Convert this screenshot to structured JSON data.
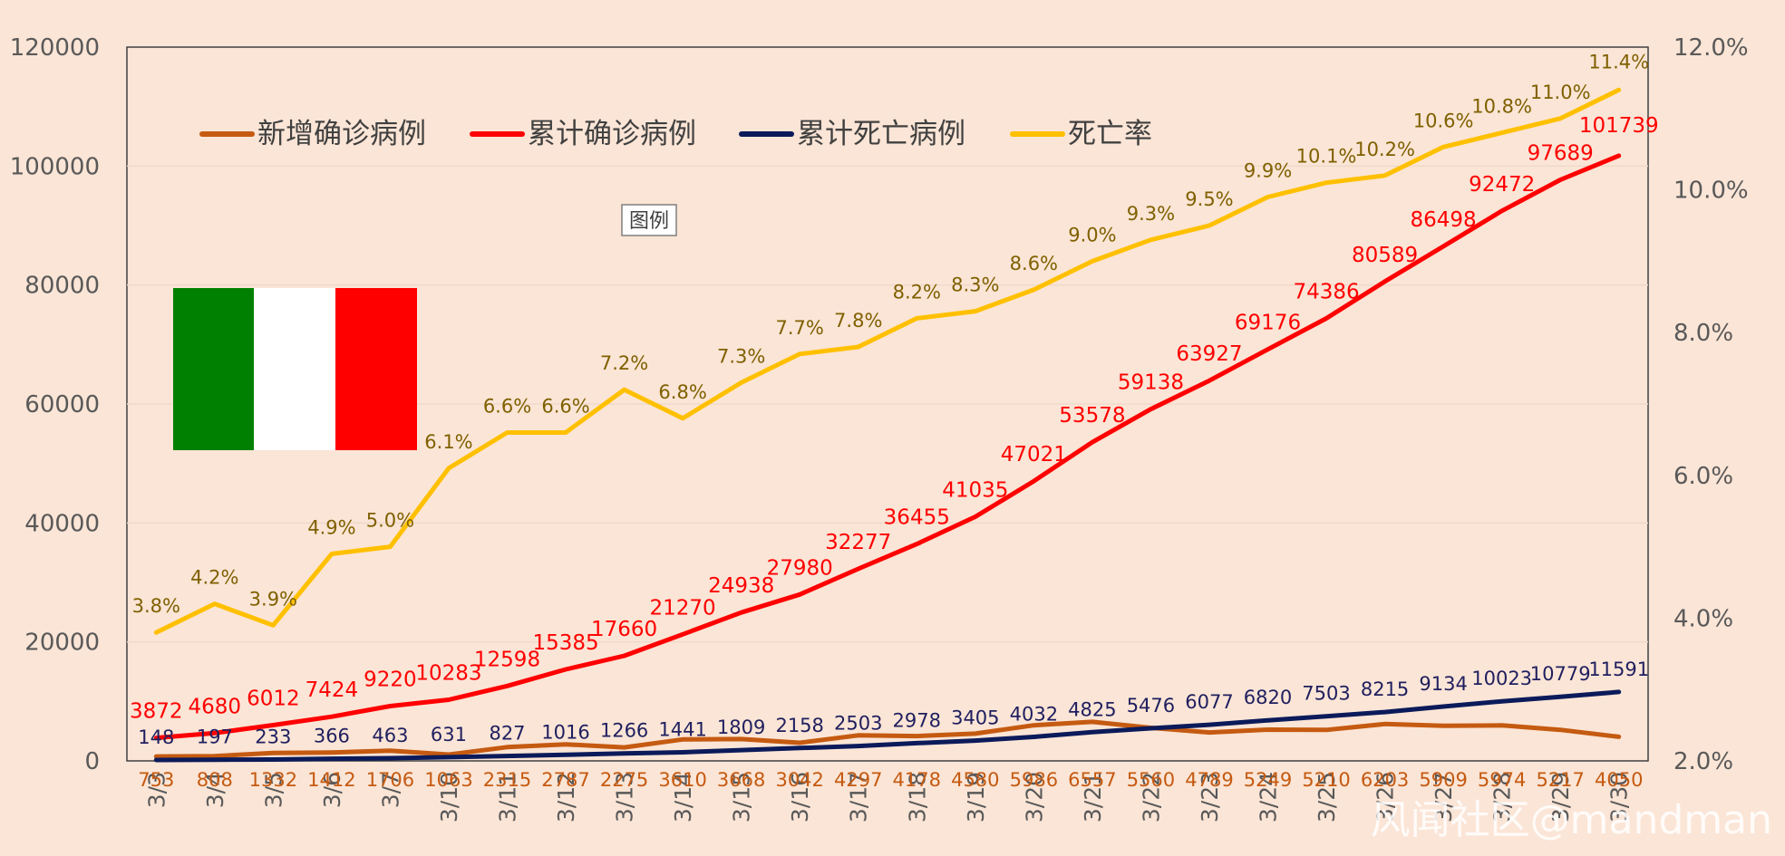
{
  "chart_data": {
    "type": "line",
    "title": "",
    "categories": [
      "3/3",
      "3/4",
      "3/5",
      "3/6",
      "3/7",
      "3/10",
      "3/11",
      "3/12",
      "3/13",
      "3/14",
      "3/15",
      "3/16",
      "3/17",
      "3/18",
      "3/19",
      "3/20",
      "3/21",
      "3/22",
      "3/23",
      "3/24",
      "3/25",
      "3/26",
      "3/27",
      "3/28",
      "3/29",
      "3/30"
    ],
    "x_tick_labels": [
      "3/3",
      "3/4",
      "3/5",
      "3/6",
      "3/7",
      "3/10",
      "3/11",
      "3/12",
      "3/13",
      "3/14",
      "3/15",
      "3/16",
      "3/17",
      "3/18",
      "3/19",
      "3/20",
      "3/21",
      "3/22",
      "3/23",
      "3/24",
      "3/25",
      "3/26",
      "3/27",
      "3/28",
      "3/29",
      "3/30"
    ],
    "left_axis": {
      "ylim": [
        0,
        120000
      ],
      "ticks": [
        "0",
        "20000",
        "40000",
        "60000",
        "80000",
        "100000",
        "120000"
      ]
    },
    "right_axis": {
      "ylim": [
        2.0,
        12.0
      ],
      "ticks": [
        "2.0%",
        "4.0%",
        "6.0%",
        "8.0%",
        "10.0%",
        "12.0%"
      ]
    },
    "legend_position": "top-left",
    "series": [
      {
        "name": "新增确诊病例",
        "axis": "left",
        "color": "#c55a11",
        "values": [
          753,
          808,
          1332,
          1412,
          1706,
          1063,
          2315,
          2787,
          2275,
          3610,
          3668,
          3042,
          4297,
          4178,
          4580,
          5986,
          6557,
          5560,
          4789,
          5249,
          5210,
          6203,
          5909,
          5974,
          5217,
          4050
        ],
        "labels": [
          "753",
          "808",
          "1332",
          "1412",
          "1706",
          "1063",
          "2315",
          "2787",
          "2275",
          "3610",
          "3668",
          "3042",
          "4297",
          "4178",
          "4580",
          "5986",
          "6557",
          "5560",
          "4789",
          "5249",
          "5210",
          "6203",
          "5909",
          "5974",
          "5217",
          "4050"
        ]
      },
      {
        "name": "累计确诊病例",
        "axis": "left",
        "color": "#ff0000",
        "values": [
          3872,
          4680,
          6012,
          7424,
          9220,
          10283,
          12598,
          15385,
          17660,
          21270,
          24938,
          27980,
          32277,
          36455,
          41035,
          47021,
          53578,
          59138,
          63927,
          69176,
          74386,
          80589,
          86498,
          92472,
          97689,
          101739
        ],
        "labels": [
          "3872",
          "4680",
          "6012",
          "7424",
          "9220",
          "10283",
          "12598",
          "15385",
          "17660",
          "21270",
          "24938",
          "27980",
          "32277",
          "36455",
          "41035",
          "47021",
          "53578",
          "59138",
          "63927",
          "69176",
          "74386",
          "80589",
          "86498",
          "92472",
          "97689",
          "101739"
        ]
      },
      {
        "name": "累计死亡病例",
        "axis": "left",
        "color": "#0b1a5a",
        "values": [
          148,
          197,
          233,
          366,
          463,
          631,
          827,
          1016,
          1266,
          1441,
          1809,
          2158,
          2503,
          2978,
          3405,
          4032,
          4825,
          5476,
          6077,
          6820,
          7503,
          8215,
          9134,
          10023,
          10779,
          11591
        ],
        "labels": [
          "148",
          "197",
          "233",
          "366",
          "463",
          "631",
          "827",
          "1016",
          "1266",
          "1441",
          "1809",
          "2158",
          "2503",
          "2978",
          "3405",
          "4032",
          "4825",
          "5476",
          "6077",
          "6820",
          "7503",
          "8215",
          "9134",
          "10023",
          "10779",
          "11591"
        ]
      },
      {
        "name": "死亡率",
        "axis": "right",
        "color": "#ffc000",
        "values": [
          3.8,
          4.2,
          3.9,
          4.9,
          5.0,
          6.1,
          6.6,
          6.6,
          7.2,
          6.8,
          7.3,
          7.7,
          7.8,
          8.2,
          8.3,
          8.6,
          9.0,
          9.3,
          9.5,
          9.9,
          10.1,
          10.2,
          10.6,
          10.8,
          11.0,
          11.4
        ],
        "labels": [
          "3.8%",
          "4.2%",
          "3.9%",
          "4.9%",
          "5.0%",
          "6.1%",
          "6.6%",
          "6.6%",
          "7.2%",
          "6.8%",
          "7.3%",
          "7.7%",
          "7.8%",
          "8.2%",
          "8.3%",
          "8.6%",
          "9.0%",
          "9.3%",
          "9.5%",
          "9.9%",
          "10.1%",
          "10.2%",
          "10.6%",
          "10.8%",
          "11.0%",
          "11.4%"
        ]
      }
    ]
  },
  "legend_note": "图例",
  "flag_colors": [
    "#008000",
    "#ffffff",
    "#ff0000"
  ],
  "watermark": "风闻社区@mandman"
}
